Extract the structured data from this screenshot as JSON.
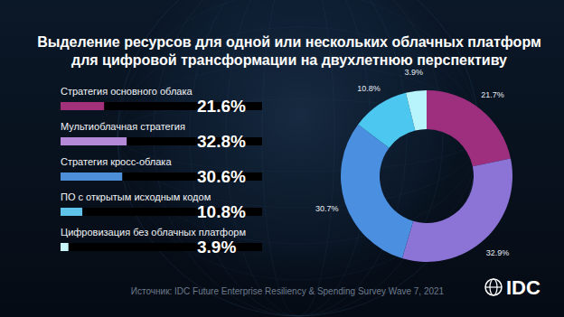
{
  "chart_data": [
    {
      "type": "bar",
      "title": "Выделение ресурсов для одной или нескольких облачных платформ\nдля цифровой трансформации на двухлетнюю перспективу",
      "orientation": "horizontal",
      "categories": [
        "Стратегия основного облака",
        "Мультиоблачная стратегия",
        "Стратегия кросс-облака",
        "ПО с открытым исходным кодом",
        "Цифровизация без облачных платформ"
      ],
      "values": [
        21.6,
        32.8,
        30.6,
        10.8,
        3.9
      ],
      "value_labels": [
        "21.6%",
        "32.8%",
        "30.6%",
        "10.8%",
        "3.9%"
      ],
      "colors": [
        "#a3307a",
        "#b48ad8",
        "#4d8fd8",
        "#5fc3ea",
        "#c8f7fb"
      ],
      "xlim": [
        0,
        100
      ],
      "data_labels": true,
      "tick_labels": false,
      "grid": false,
      "annotations": [
        "Источник: IDC Future Enterprise Resiliency & Spending Survey Wave 7, 2021",
        "IDC"
      ]
    },
    {
      "type": "pie",
      "values": [
        21.7,
        32.9,
        30.7,
        10.8,
        3.9
      ],
      "value_labels": [
        "21.7%",
        "32.9%",
        "30.7%",
        "10.8%",
        "3.9%"
      ],
      "colors": [
        "#9e2f7e",
        "#8c73d6",
        "#4a8fe0",
        "#4cc8f0",
        "#b8f4fb"
      ],
      "data_labels": true
    }
  ]
}
